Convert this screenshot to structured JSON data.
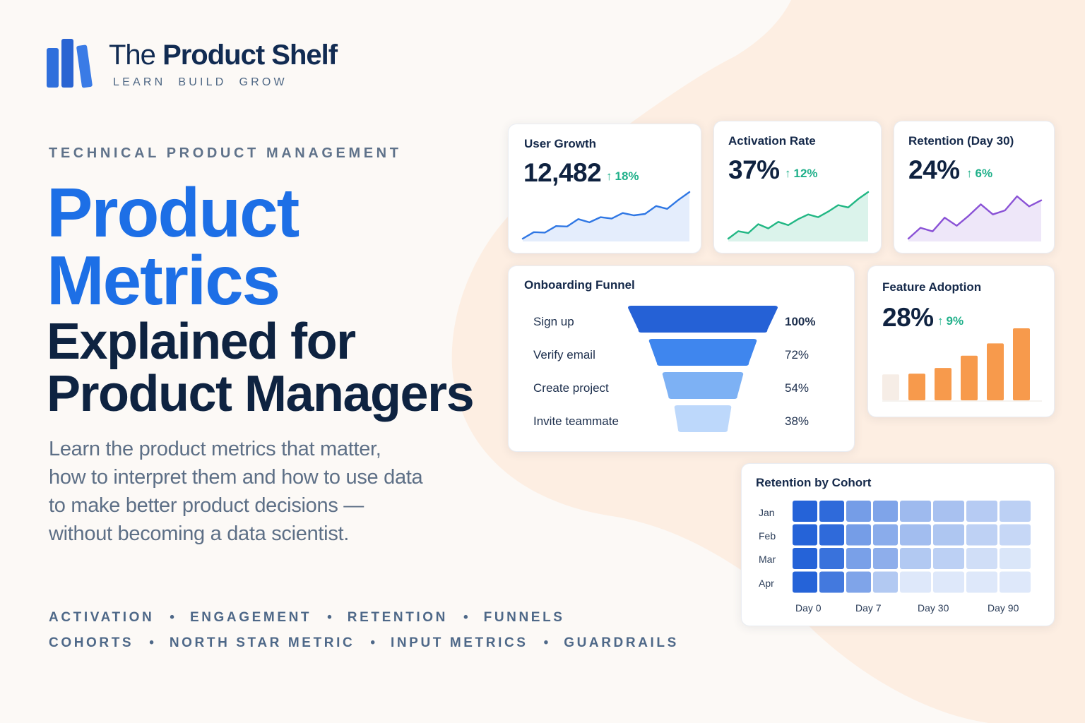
{
  "brand": {
    "name_part1": "The",
    "name_part2": "Product Shelf",
    "tagline": [
      "LEARN",
      "BUILD",
      "GROW"
    ]
  },
  "hero": {
    "eyebrow": "TECHNICAL PRODUCT MANAGEMENT",
    "headline_line1": "Product",
    "headline_line2": "Metrics",
    "headline_line3": "Explained for",
    "headline_line4": "Product Managers",
    "description_lines": [
      "Learn the product metrics that matter,",
      "how to interpret them and how to use data",
      "to make better product decisions —",
      "without becoming a data scientist."
    ]
  },
  "topics": {
    "row1": [
      "ACTIVATION",
      "ENGAGEMENT",
      "RETENTION",
      "FUNNELS"
    ],
    "row2": [
      "COHORTS",
      "NORTH STAR METRIC",
      "INPUT METRICS",
      "GUARDRAILS"
    ],
    "separator": "•"
  },
  "colors": {
    "accent_blue": "#1d6fe6",
    "dark_navy": "#0e2341",
    "growth_line": "#2f77e4",
    "activation_line": "#22b784",
    "retention_line": "#8a52d6",
    "adoption_bar": "#f79a4c",
    "delta_green": "#20b08a",
    "background_blob": "#fdeee2"
  },
  "chart_data": [
    {
      "type": "line",
      "title": "User Growth",
      "value": "12,482",
      "delta": "18%",
      "trend": "up",
      "series": [
        {
          "values": [
            0.0,
            0.14,
            0.13,
            0.27,
            0.26,
            0.42,
            0.35,
            0.46,
            0.43,
            0.55,
            0.5,
            0.53,
            0.7,
            0.64,
            0.83,
            1.0
          ]
        }
      ]
    },
    {
      "type": "line",
      "title": "Activation Rate",
      "value": "37%",
      "delta": "12%",
      "trend": "up",
      "series": [
        {
          "values": [
            0.0,
            0.16,
            0.12,
            0.31,
            0.22,
            0.36,
            0.29,
            0.42,
            0.52,
            0.46,
            0.58,
            0.72,
            0.67,
            0.85,
            1.0
          ]
        }
      ]
    },
    {
      "type": "line",
      "title": "Retention (Day 30)",
      "value": "24%",
      "delta": "6%",
      "trend": "up",
      "series": [
        {
          "values": [
            0.0,
            0.27,
            0.18,
            0.52,
            0.32,
            0.57,
            0.85,
            0.6,
            0.7,
            1.05,
            0.8,
            0.95
          ]
        }
      ]
    },
    {
      "type": "bar",
      "title": "Onboarding Funnel",
      "categories": [
        "Sign up",
        "Verify email",
        "Create project",
        "Invite teammate"
      ],
      "values": [
        100,
        72,
        54,
        38
      ],
      "value_labels": [
        "100%",
        "72%",
        "54%",
        "38%"
      ],
      "colors": [
        "#2561d6",
        "#3f86ee",
        "#7db1f4",
        "#bdd8fb"
      ]
    },
    {
      "type": "bar",
      "title": "Feature Adoption",
      "value": "28%",
      "delta": "9%",
      "trend": "up",
      "values": [
        36,
        37,
        45,
        62,
        79,
        100
      ],
      "highlight_first_faded": true
    },
    {
      "type": "heatmap",
      "title": "Retention by Cohort",
      "rows": [
        "Jan",
        "Feb",
        "Mar",
        "Apr"
      ],
      "x_tick_labels": [
        "Day 0",
        "Day 7",
        "Day 30",
        "Day 90"
      ],
      "columns": 8,
      "values": [
        [
          1.0,
          0.95,
          0.6,
          0.55,
          0.4,
          0.35,
          0.28,
          0.25
        ],
        [
          1.0,
          0.95,
          0.6,
          0.5,
          0.38,
          0.32,
          0.24,
          0.2
        ],
        [
          1.0,
          0.9,
          0.58,
          0.48,
          0.3,
          0.25,
          0.15,
          0.1
        ],
        [
          1.0,
          0.85,
          0.55,
          0.3,
          0.08,
          0.08,
          0.08,
          0.08
        ]
      ]
    }
  ]
}
